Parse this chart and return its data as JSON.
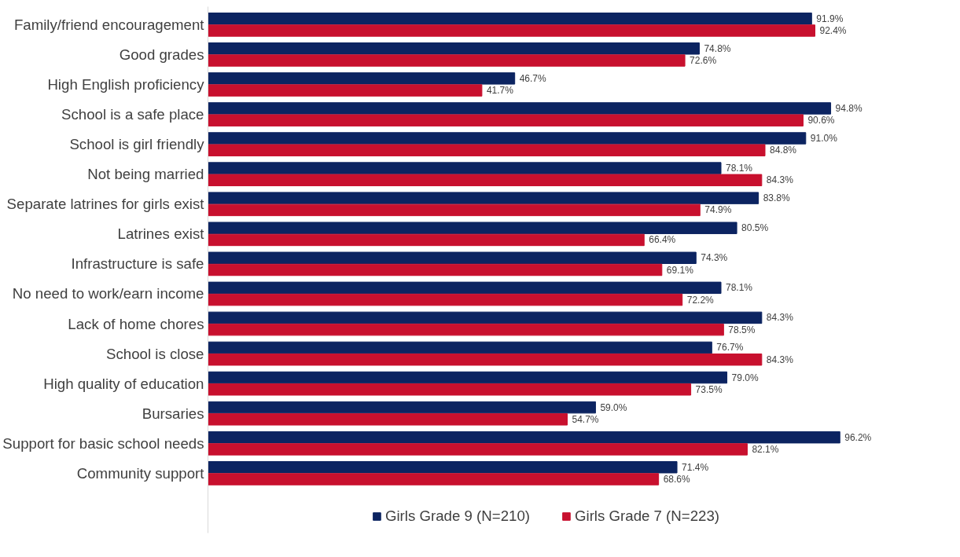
{
  "chart_data": {
    "type": "bar",
    "orientation": "horizontal",
    "legend": "bottom",
    "grid": false,
    "tick_labels": "y",
    "categories": [
      "Family/friend encouragement",
      "Good grades",
      "High English proficiency",
      "School is a safe place",
      "School is girl friendly",
      "Not being married",
      "Separate latrines for girls exist",
      "Latrines exist",
      "Infrastructure is safe",
      "No need to work/earn income",
      "Lack of home chores",
      "School is close",
      "High quality of education",
      "Bursaries",
      "Support for basic school needs",
      "Community support"
    ],
    "series": [
      {
        "name": "Girls Grade 9 (N=210)",
        "color": "#0c2461",
        "values": [
          91.9,
          74.8,
          46.7,
          94.8,
          91.0,
          78.1,
          83.8,
          80.5,
          74.3,
          78.1,
          84.3,
          76.7,
          79.0,
          59.0,
          96.2,
          71.4
        ],
        "value_labels": [
          "91.9%",
          "74.8%",
          "46.7%",
          "94.8%",
          "91.0%",
          "78.1%",
          "83.8%",
          "80.5%",
          "74.3%",
          "78.1%",
          "84.3%",
          "76.7%",
          "79.0%",
          "59.0%",
          "96.2%",
          "71.4%"
        ]
      },
      {
        "name": "Girls Grade 7 (N=223)",
        "color": "#c8102e",
        "values": [
          92.4,
          72.6,
          41.7,
          90.6,
          84.8,
          84.3,
          74.9,
          66.4,
          69.1,
          72.2,
          78.5,
          84.3,
          73.5,
          54.7,
          82.1,
          68.6
        ],
        "value_labels": [
          "92.4%",
          "72.6%",
          "41.7%",
          "90.6%",
          "84.8%",
          "84.3%",
          "74.9%",
          "66.4%",
          "69.1%",
          "72.2%",
          "78.5%",
          "84.3%",
          "73.5%",
          "54.7%",
          "82.1%",
          "68.6%"
        ]
      }
    ]
  }
}
